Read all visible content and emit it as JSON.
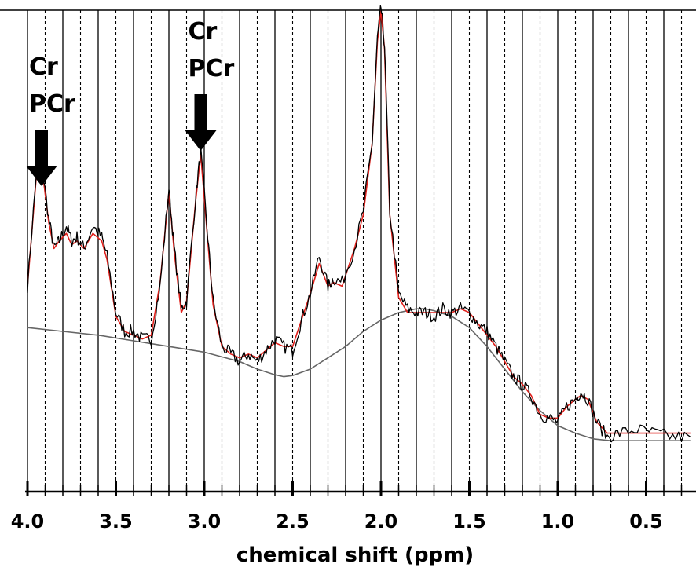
{
  "chart_data": {
    "type": "line",
    "title": "",
    "xlabel": "chemical shift (ppm)",
    "ylabel": "",
    "xlim": [
      4.0,
      0.25
    ],
    "x_reversed": true,
    "grid": "vertical lines every 0.1 ppm (solid at 0.2 ppm steps, dashed in between)",
    "x_ticks": [
      4.0,
      3.5,
      3.0,
      2.5,
      2.0,
      1.5,
      1.0,
      0.5
    ],
    "x_tick_labels": [
      "4.0",
      "3.5",
      "3.0",
      "2.5",
      "2.0",
      "1.5",
      "1.0",
      "0.5"
    ],
    "colors": {
      "measured": "#000000",
      "fit": "#e0201b",
      "baseline": "#666666"
    },
    "series": [
      {
        "key": "measured",
        "x": [
          4.0,
          3.95,
          3.92,
          3.88,
          3.85,
          3.82,
          3.78,
          3.75,
          3.72,
          3.68,
          3.63,
          3.58,
          3.55,
          3.5,
          3.45,
          3.4,
          3.35,
          3.3,
          3.25,
          3.2,
          3.17,
          3.13,
          3.1,
          3.05,
          3.02,
          2.98,
          2.95,
          2.9,
          2.85,
          2.8,
          2.75,
          2.7,
          2.65,
          2.6,
          2.55,
          2.5,
          2.45,
          2.4,
          2.35,
          2.3,
          2.27,
          2.22,
          2.15,
          2.1,
          2.05,
          2.02,
          2.0,
          1.98,
          1.95,
          1.9,
          1.85,
          1.8,
          1.75,
          1.7,
          1.65,
          1.6,
          1.55,
          1.5,
          1.45,
          1.4,
          1.35,
          1.3,
          1.25,
          1.2,
          1.15,
          1.1,
          1.05,
          1.0,
          0.95,
          0.9,
          0.87,
          0.83,
          0.78,
          0.72,
          0.65,
          0.55,
          0.45,
          0.35,
          0.25
        ],
        "y": [
          0.22,
          0.52,
          0.55,
          0.4,
          0.32,
          0.34,
          0.38,
          0.34,
          0.35,
          0.32,
          0.38,
          0.35,
          0.3,
          0.15,
          0.1,
          0.1,
          0.08,
          0.08,
          0.22,
          0.48,
          0.32,
          0.16,
          0.18,
          0.45,
          0.58,
          0.35,
          0.18,
          0.06,
          0.04,
          0.02,
          0.04,
          0.02,
          0.05,
          0.08,
          0.06,
          0.05,
          0.13,
          0.2,
          0.3,
          0.22,
          0.24,
          0.23,
          0.32,
          0.42,
          0.6,
          0.88,
          0.96,
          0.86,
          0.42,
          0.2,
          0.16,
          0.15,
          0.15,
          0.14,
          0.16,
          0.15,
          0.16,
          0.15,
          0.12,
          0.1,
          0.06,
          0.02,
          -0.02,
          -0.04,
          -0.07,
          -0.12,
          -0.13,
          -0.14,
          -0.1,
          -0.08,
          -0.06,
          -0.08,
          -0.14,
          -0.18,
          -0.17,
          -0.16,
          -0.17,
          -0.18,
          -0.18
        ]
      },
      {
        "key": "fit",
        "x": [
          4.0,
          3.95,
          3.92,
          3.88,
          3.85,
          3.82,
          3.78,
          3.75,
          3.72,
          3.68,
          3.63,
          3.58,
          3.55,
          3.5,
          3.45,
          3.4,
          3.35,
          3.3,
          3.25,
          3.2,
          3.17,
          3.13,
          3.1,
          3.05,
          3.02,
          2.98,
          2.95,
          2.9,
          2.85,
          2.8,
          2.75,
          2.7,
          2.65,
          2.6,
          2.55,
          2.5,
          2.45,
          2.4,
          2.35,
          2.3,
          2.27,
          2.22,
          2.15,
          2.1,
          2.05,
          2.02,
          2.0,
          1.98,
          1.95,
          1.9,
          1.85,
          1.8,
          1.75,
          1.7,
          1.65,
          1.6,
          1.55,
          1.5,
          1.45,
          1.4,
          1.35,
          1.3,
          1.25,
          1.2,
          1.15,
          1.1,
          1.05,
          1.0,
          0.95,
          0.9,
          0.87,
          0.83,
          0.78,
          0.72,
          0.65,
          0.55,
          0.45,
          0.35,
          0.25
        ],
        "y": [
          0.22,
          0.51,
          0.54,
          0.39,
          0.32,
          0.34,
          0.36,
          0.33,
          0.34,
          0.32,
          0.36,
          0.34,
          0.29,
          0.14,
          0.1,
          0.09,
          0.08,
          0.09,
          0.23,
          0.47,
          0.31,
          0.15,
          0.18,
          0.44,
          0.57,
          0.34,
          0.17,
          0.06,
          0.04,
          0.03,
          0.04,
          0.03,
          0.05,
          0.07,
          0.06,
          0.06,
          0.13,
          0.2,
          0.28,
          0.22,
          0.23,
          0.22,
          0.32,
          0.41,
          0.6,
          0.87,
          0.95,
          0.85,
          0.41,
          0.19,
          0.15,
          0.15,
          0.15,
          0.15,
          0.15,
          0.15,
          0.16,
          0.15,
          0.12,
          0.09,
          0.06,
          0.02,
          -0.02,
          -0.04,
          -0.07,
          -0.12,
          -0.13,
          -0.13,
          -0.1,
          -0.08,
          -0.07,
          -0.08,
          -0.14,
          -0.17,
          -0.17,
          -0.17,
          -0.17,
          -0.17,
          -0.17
        ]
      },
      {
        "key": "baseline",
        "x": [
          4.0,
          3.8,
          3.6,
          3.4,
          3.2,
          3.0,
          2.8,
          2.7,
          2.6,
          2.55,
          2.5,
          2.4,
          2.3,
          2.2,
          2.1,
          2.0,
          1.9,
          1.8,
          1.75,
          1.7,
          1.6,
          1.5,
          1.4,
          1.3,
          1.2,
          1.1,
          1.0,
          0.9,
          0.8,
          0.7,
          0.6,
          0.5,
          0.4,
          0.3,
          0.25
        ],
        "y": [
          0.11,
          0.1,
          0.09,
          0.075,
          0.06,
          0.045,
          0.02,
          0.0,
          -0.015,
          -0.02,
          -0.017,
          0.0,
          0.03,
          0.06,
          0.1,
          0.13,
          0.15,
          0.16,
          0.16,
          0.155,
          0.14,
          0.11,
          0.06,
          0.0,
          -0.06,
          -0.11,
          -0.15,
          -0.17,
          -0.185,
          -0.19,
          -0.19,
          -0.19,
          -0.19,
          -0.19,
          -0.19
        ]
      }
    ],
    "annotations": [
      {
        "x": 3.92,
        "lines": [
          "Cr",
          "PCr"
        ]
      },
      {
        "x": 3.02,
        "lines": [
          "Cr",
          "PCr"
        ]
      }
    ]
  }
}
